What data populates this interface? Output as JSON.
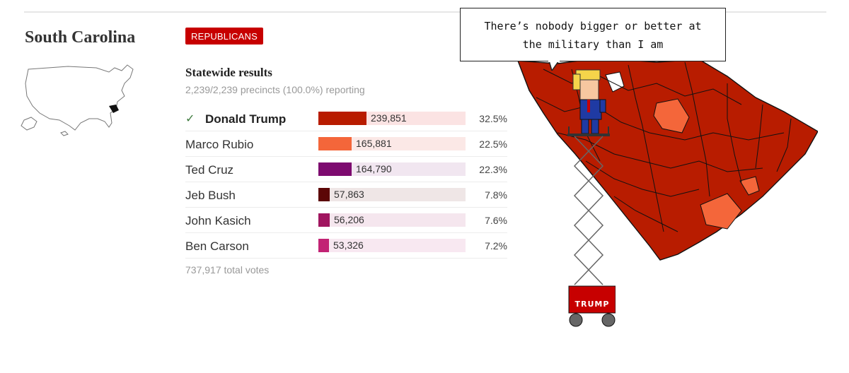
{
  "state": {
    "name": "South Carolina"
  },
  "party_badge": "REPUBLICANS",
  "statewide": {
    "title": "Statewide results",
    "precincts": "2,239/2,239 precincts (100.0%) reporting",
    "total": "737,917 total votes"
  },
  "candidates": [
    {
      "name": "Donald Trump",
      "votes": "239,851",
      "pct": "32.5%",
      "share": 0.325,
      "color": "#b81c00",
      "track": "#fbe3e3",
      "winner": true
    },
    {
      "name": "Marco Rubio",
      "votes": "165,881",
      "pct": "22.5%",
      "share": 0.225,
      "color": "#f4663a",
      "track": "#fbe8e6",
      "winner": false
    },
    {
      "name": "Ted Cruz",
      "votes": "164,790",
      "pct": "22.3%",
      "share": 0.223,
      "color": "#7d0a6f",
      "track": "#f1e6f0",
      "winner": false
    },
    {
      "name": "Jeb Bush",
      "votes": "57,863",
      "pct": "7.8%",
      "share": 0.078,
      "color": "#5c0606",
      "track": "#efe6e6",
      "winner": false
    },
    {
      "name": "John Kasich",
      "votes": "56,206",
      "pct": "7.6%",
      "share": 0.076,
      "color": "#a0155f",
      "track": "#f5e6ee",
      "winner": false
    },
    {
      "name": "Ben Carson",
      "votes": "53,326",
      "pct": "7.2%",
      "share": 0.072,
      "color": "#c22374",
      "track": "#f8e8f1",
      "winner": false
    }
  ],
  "speech_bubble": {
    "line1": "There’s nobody bigger or better at",
    "line2": "the military than I am"
  },
  "lift_label": "TRUMP",
  "colors": {
    "trump": "#b81c00",
    "rubio": "#f4663a",
    "accent": "#c70000"
  }
}
